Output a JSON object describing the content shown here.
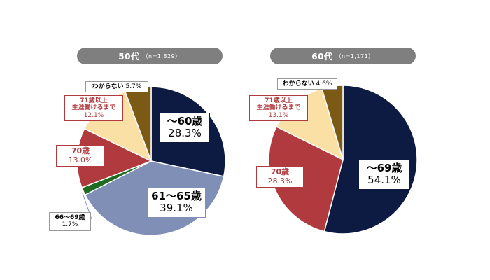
{
  "chart_data": [
    {
      "type": "pie",
      "title": "50代",
      "subtitle": "（n=1,829）",
      "slices": [
        {
          "label": "～60歳",
          "value": 28.3,
          "display": "28.3%",
          "color": "#0d1b42"
        },
        {
          "label": "61～65歳",
          "value": 39.1,
          "display": "39.1%",
          "color": "#7f8fb6"
        },
        {
          "label": "66～69歳",
          "value": 1.7,
          "display": "1.7%",
          "color": "#1f6b1f"
        },
        {
          "label": "70歳",
          "value": 13.0,
          "display": "13.0%",
          "color": "#b03a3e"
        },
        {
          "label": "71歳以上\n生涯働けるまで",
          "value": 12.1,
          "display": "12.1%",
          "color": "#fbe0a6"
        },
        {
          "label": "わからない",
          "value": 5.7,
          "display": "5.7%",
          "color": "#7a5a14"
        }
      ]
    },
    {
      "type": "pie",
      "title": "60代",
      "subtitle": "（n=1,171）",
      "slices": [
        {
          "label": "～69歳",
          "value": 54.1,
          "display": "54.1%",
          "color": "#0d1b42"
        },
        {
          "label": "70歳",
          "value": 28.3,
          "display": "28.3%",
          "color": "#b03a3e"
        },
        {
          "label": "71歳以上\n生涯働けるまで",
          "value": 13.1,
          "display": "13.1%",
          "color": "#fbe0a6"
        },
        {
          "label": "わからない",
          "value": 4.6,
          "display": "4.6%",
          "color": "#7a5a14"
        }
      ]
    }
  ]
}
